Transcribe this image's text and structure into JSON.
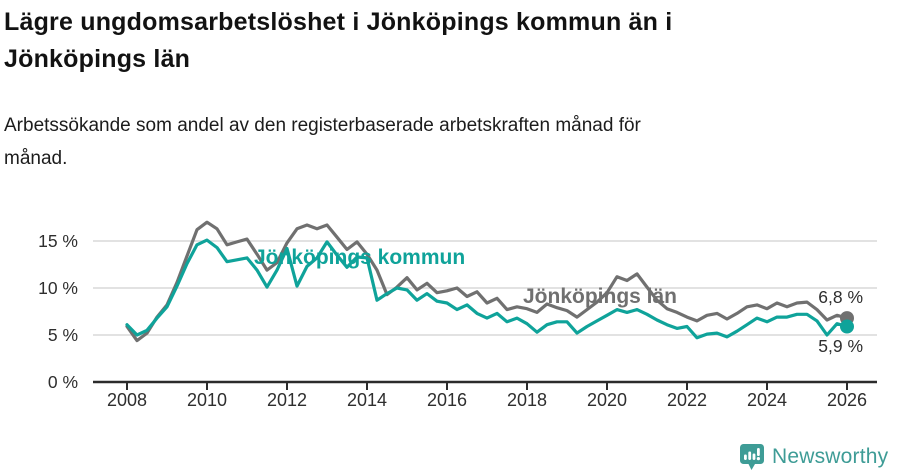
{
  "header": {
    "title": "Lägre ungdomsarbetslöshet i Jönköpings kommun än i\nJönköpings län",
    "subtitle": "Arbetssökande som andel av den registerbaserade arbetskraften månad för\nmånad."
  },
  "footer": {
    "brand": "Newsworthy",
    "brand_color": "#3e9c96",
    "logo_icon": "bar-chart-speech-bubble"
  },
  "colors": {
    "grid": "#d8d8d8",
    "axis": "#2b2b2b",
    "tick_text": "#2e2e2e",
    "kommun_teal": "#0fa39a",
    "lan_gray": "#707070"
  },
  "chart_data": {
    "type": "line",
    "title": "Lägre ungdomsarbetslöshet i Jönköpings kommun än i Jönköpings län",
    "xlabel": "",
    "ylabel": "",
    "y_unit": "percent of registered labour force",
    "grid": "horizontal",
    "x_range": [
      2007.2,
      2026.8
    ],
    "y_range": [
      0,
      18.5
    ],
    "x_ticks": [
      2008,
      2010,
      2012,
      2014,
      2016,
      2018,
      2020,
      2022,
      2024,
      2026
    ],
    "x_tick_labels": [
      "2008",
      "2010",
      "2012",
      "2014",
      "2016",
      "2018",
      "2020",
      "2022",
      "2024",
      "2026"
    ],
    "y_ticks": [
      0,
      5,
      10,
      15
    ],
    "y_tick_labels": [
      "0 %",
      "5 %",
      "10 %",
      "15 %"
    ],
    "legend_position": "inline-labels",
    "x": [
      2008.0,
      2008.25,
      2008.5,
      2008.75,
      2009.0,
      2009.25,
      2009.5,
      2009.75,
      2010.0,
      2010.25,
      2010.5,
      2010.75,
      2011.0,
      2011.25,
      2011.5,
      2011.75,
      2012.0,
      2012.25,
      2012.5,
      2012.75,
      2013.0,
      2013.25,
      2013.5,
      2013.75,
      2014.0,
      2014.25,
      2014.5,
      2014.75,
      2015.0,
      2015.25,
      2015.5,
      2015.75,
      2016.0,
      2016.25,
      2016.5,
      2016.75,
      2017.0,
      2017.25,
      2017.5,
      2017.75,
      2018.0,
      2018.25,
      2018.5,
      2018.75,
      2019.0,
      2019.25,
      2019.5,
      2019.75,
      2020.0,
      2020.25,
      2020.5,
      2020.75,
      2021.0,
      2021.25,
      2021.5,
      2021.75,
      2022.0,
      2022.25,
      2022.5,
      2022.75,
      2023.0,
      2023.25,
      2023.5,
      2023.75,
      2024.0,
      2024.25,
      2024.5,
      2024.75,
      2025.0,
      2025.25,
      2025.5,
      2025.75,
      2026.0
    ],
    "series": [
      {
        "id": "jonkopings-lan",
        "name": "Jönköpings län",
        "color": "#707070",
        "end_label": "6,8 %",
        "end_value": 6.8,
        "values": [
          5.9,
          4.4,
          5.2,
          6.9,
          8.2,
          10.6,
          13.4,
          16.2,
          17.0,
          16.3,
          14.6,
          14.9,
          15.2,
          13.6,
          11.9,
          12.7,
          14.8,
          16.3,
          16.7,
          16.3,
          16.7,
          15.4,
          14.1,
          14.9,
          13.6,
          11.9,
          9.3,
          10.1,
          11.1,
          9.8,
          10.5,
          9.5,
          9.7,
          10.0,
          9.1,
          9.6,
          8.4,
          8.9,
          7.7,
          8.0,
          7.8,
          7.4,
          8.3,
          7.9,
          7.6,
          6.9,
          7.7,
          8.5,
          9.5,
          11.2,
          10.8,
          11.5,
          10.1,
          8.7,
          7.8,
          7.4,
          6.9,
          6.5,
          7.1,
          7.3,
          6.7,
          7.3,
          8.0,
          8.2,
          7.8,
          8.4,
          8.0,
          8.4,
          8.5,
          7.7,
          6.6,
          7.1,
          6.8
        ]
      },
      {
        "id": "jonkopings-kommun",
        "name": "Jönköpings kommun",
        "color": "#0fa39a",
        "end_label": "5,9 %",
        "end_value": 5.9,
        "values": [
          6.1,
          5.0,
          5.5,
          6.8,
          8.0,
          10.2,
          12.6,
          14.6,
          15.1,
          14.3,
          12.8,
          13.0,
          13.2,
          11.9,
          10.1,
          11.9,
          14.2,
          10.2,
          12.3,
          13.2,
          14.9,
          13.5,
          12.2,
          13.3,
          13.2,
          8.7,
          9.4,
          10.0,
          9.8,
          8.7,
          9.4,
          8.6,
          8.4,
          7.7,
          8.2,
          7.3,
          6.8,
          7.3,
          6.4,
          6.8,
          6.2,
          5.3,
          6.1,
          6.4,
          6.4,
          5.2,
          5.9,
          6.5,
          7.1,
          7.7,
          7.4,
          7.7,
          7.2,
          6.6,
          6.1,
          5.7,
          5.9,
          4.7,
          5.1,
          5.2,
          4.8,
          5.4,
          6.1,
          6.8,
          6.4,
          6.9,
          6.9,
          7.2,
          7.2,
          6.5,
          5.0,
          6.2,
          5.9
        ]
      }
    ]
  }
}
